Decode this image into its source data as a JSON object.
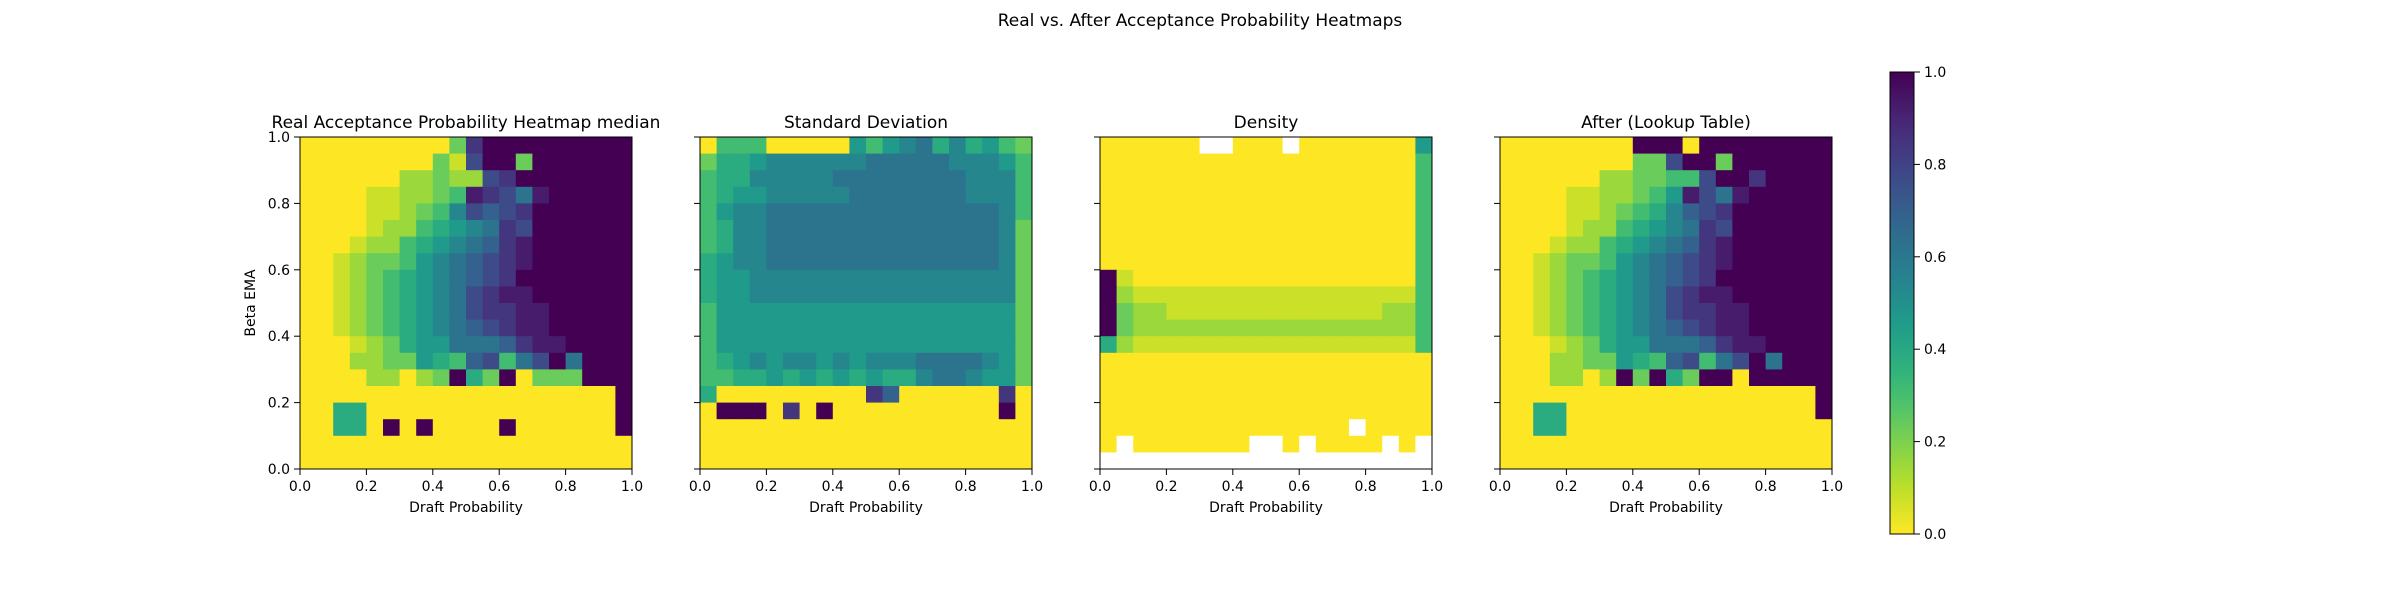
{
  "figure": {
    "suptitle": "Real vs. After Acceptance Probability Heatmaps"
  },
  "chart_data": [
    {
      "type": "heatmap",
      "title": "Real Acceptance Probability Heatmap median",
      "xlabel": "Draft Probability",
      "ylabel": "Beta EMA",
      "xlim": [
        0,
        1
      ],
      "ylim": [
        0,
        1
      ],
      "xticks": [
        "0.0",
        "0.2",
        "0.4",
        "0.6",
        "0.8",
        "1.0"
      ],
      "yticks": [
        "0.0",
        "0.2",
        "0.4",
        "0.6",
        "0.8",
        "1.0"
      ],
      "grid": false,
      "bins": 20,
      "rows_top_to_bottom": [
        "0000000003BDDDDDDDDD",
        "0000000031ADD3DDDDDD",
        "00000022322ABDDDDDDD",
        "0000112234CBA8CDDDDD",
        "0000112347A9ABDDDDDD",
        "000012245678BADDDDDD",
        "000122456789BCDDDDDD",
        "00123346789ABCDDDDDD",
        "00123456789ABDDDDDDD",
        "0012345678ABCCDDDDDD",
        "0012345678ABBCCDDDDD",
        "00123456789ABCCDDDDD",
        "0001235668889BCCDDDD",
        "00022336549A48AD8DDD",
        "000022023D53D0333DDD",
        "0000000000000000000D",
        "0055000000000000000D",
        "00550D0D0000D000000D",
        "00000000000000000000",
        "00000000000000000000"
      ]
    },
    {
      "type": "heatmap",
      "title": "Standard Deviation",
      "xlabel": "Draft Probability",
      "xlim": [
        0,
        1
      ],
      "ylim": [
        0,
        1
      ],
      "xticks": [
        "0.0",
        "0.2",
        "0.4",
        "0.6",
        "0.8",
        "1.0"
      ],
      "grid": false,
      "bins": 20,
      "rows_top_to_bottom": [
        "04440000064678575643",
        "35567777778888877764",
        "45577777888888887774",
        "45667777788888887774",
        "46778888888888888874",
        "45778888888888888873",
        "45778888888888888873",
        "56778888888888888873",
        "56677777777777777773",
        "56677777777777777773",
        "46666666666666666663",
        "46666666666666666663",
        "46666666666666666663",
        "45676776767778888763",
        "44556565656557887663",
        "5000000000B9000000B0",
        "0DDD0B0D0000000000D0",
        "00000000000000000000",
        "00000000000000000000",
        "00000000000000000000"
      ]
    },
    {
      "type": "heatmap",
      "title": "Density",
      "xlabel": "Draft Probability",
      "xlim": [
        0,
        1
      ],
      "ylim": [
        0,
        1
      ],
      "xticks": [
        "0.0",
        "0.2",
        "0.4",
        "0.6",
        "0.8",
        "1.0"
      ],
      "grid": false,
      "bins": 20,
      "rows_top_to_bottom": [
        "000000WW000W00000006",
        "00000000000000000004",
        "00000000000000000004",
        "00000000000000000004",
        "00000000000000000004",
        "00000000000000000004",
        "00000000000000000004",
        "00000000000000000004",
        "D1000000000000000004",
        "D2111111111111111114",
        "D3221111111111111224",
        "D3222222222222222224",
        "52111111111111111114",
        "00000000000000000000",
        "00000000000000000000",
        "00000000000000000000",
        "00000000000000000000",
        "000000000000000W0000",
        "0W0000000WW0W0000W0W",
        "WWWWWWWWWWWWWWWWWWWW"
      ]
    },
    {
      "type": "heatmap",
      "title": "After (Lookup Table)",
      "xlabel": "Draft Probability",
      "xlim": [
        0,
        1
      ],
      "ylim": [
        0,
        1
      ],
      "xticks": [
        "0.0",
        "0.2",
        "0.4",
        "0.6",
        "0.8",
        "1.0"
      ],
      "grid": false,
      "bins": 20,
      "rows_top_to_bottom": [
        "00000000DDD0DDDDDDDD",
        "0000000033ADD3DDDDDD",
        "000000223344ADDBDDDD",
        "00001122346CA8CDDDDD",
        "000011234579ABDDDDDD",
        "000012245678BADDDDDD",
        "000122456789BCDDDDDD",
        "00123346789ABCDDDDDD",
        "00123456789ABDDDDDDD",
        "0012345678ABCCDDDDDD",
        "0012345678ABBCCDDDDD",
        "00123456789ABCCDDDDD",
        "0001235668889BCCDDDD",
        "00022336549A48AD8DDD",
        "0002202D3D53DD0DDDDD",
        "0000000000000000000D",
        "0055000000000000000D",
        "00550000000000000000",
        "00000000000000000000",
        "00000000000000000000"
      ]
    }
  ],
  "colorbar": {
    "colormap": "viridis_r",
    "vmin": 0.0,
    "vmax": 1.0,
    "ticks": [
      "0.0",
      "0.2",
      "0.4",
      "0.6",
      "0.8",
      "1.0"
    ]
  },
  "colors": {
    "viridis_stops": [
      "#440154",
      "#482878",
      "#3e4989",
      "#31688e",
      "#26828e",
      "#1f9e89",
      "#35b779",
      "#6ece58",
      "#b5de2b",
      "#fde725"
    ],
    "missing": "#ffffff",
    "axes": "#000000"
  }
}
